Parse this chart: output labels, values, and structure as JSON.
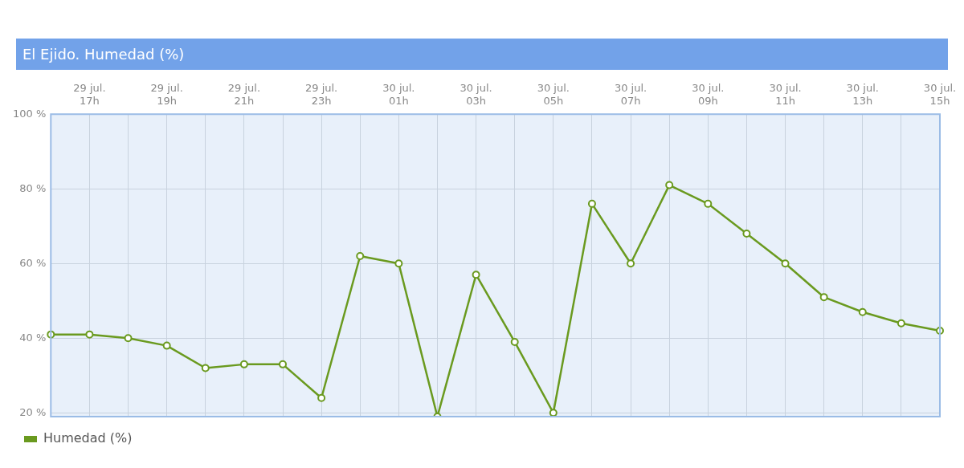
{
  "chart_data": {
    "type": "line",
    "title": "El Ejido. Humedad (%)",
    "categories": [
      null,
      "29 jul.\n17h",
      null,
      "29 jul.\n19h",
      null,
      "29 jul.\n21h",
      null,
      "29 jul.\n23h",
      null,
      "30 jul.\n01h",
      null,
      "30 jul.\n03h",
      null,
      "30 jul.\n05h",
      null,
      "30 jul.\n07h",
      null,
      "30 jul.\n09h",
      null,
      "30 jul.\n11h",
      null,
      "30 jul.\n13h",
      null,
      "30 jul.\n15h"
    ],
    "series": [
      {
        "name": "Humedad (%)",
        "color": "#6a9a1f",
        "values": [
          41,
          41,
          40,
          38,
          32,
          33,
          33,
          24,
          62,
          60,
          19,
          57,
          39,
          20,
          76,
          60,
          81,
          76,
          68,
          60,
          51,
          47,
          44,
          42
        ]
      }
    ],
    "ylim": [
      19,
      100
    ],
    "yticks": [
      {
        "value": 20,
        "label": "20 %"
      },
      {
        "value": 40,
        "label": "40 %"
      },
      {
        "value": 60,
        "label": "60 %"
      },
      {
        "value": 80,
        "label": "80 %"
      },
      {
        "value": 100,
        "label": "100 %"
      }
    ],
    "grid": true,
    "legend": "bottom left",
    "marker": "circle",
    "line_style": "solid"
  }
}
